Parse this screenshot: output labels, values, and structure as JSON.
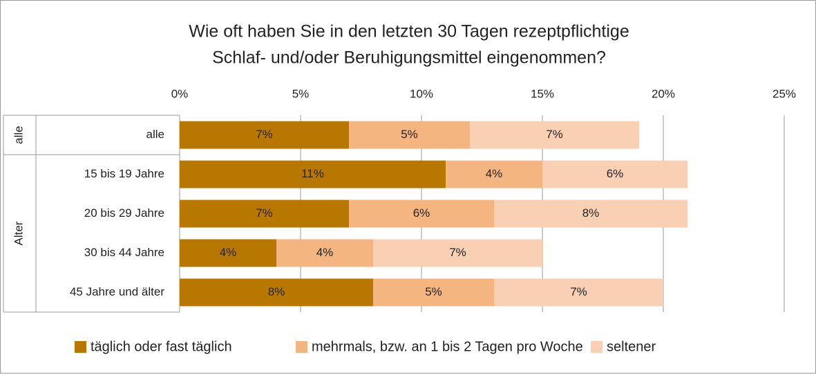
{
  "chart_data": {
    "type": "stacked-barh",
    "title": "Wie oft haben Sie in den letzten 30 Tagen rezeptpflichtige",
    "subtitle": "Schlaf- und/oder Beruhigungsmittel eingenommen?",
    "groups": [
      "alle",
      "Alter"
    ],
    "categories": [
      "alle",
      "15 bis 19 Jahre",
      "20 bis 29 Jahre",
      "30 bis 44 Jahre",
      "45 Jahre und älter"
    ],
    "series": [
      {
        "name": "täglich oder fast täglich",
        "color": "#b87800",
        "values": [
          7,
          11,
          7,
          4,
          8
        ],
        "value_labels": [
          "7%",
          "11%",
          "7%",
          "4%",
          "8%"
        ]
      },
      {
        "name": "mehrmals, bzw. an 1 bis 2 Tagen pro Woche",
        "color": "#f5b580",
        "values": [
          5,
          4,
          6,
          4,
          5
        ],
        "value_labels": [
          "5%",
          "4%",
          "6%",
          "4%",
          "5%"
        ]
      },
      {
        "name": "seltener",
        "color": "#fad0b5",
        "values": [
          7,
          6,
          8,
          7,
          7
        ],
        "value_labels": [
          "7%",
          "6%",
          "8%",
          "7%",
          "7%"
        ]
      }
    ],
    "xlim": [
      0,
      25
    ],
    "xticks": [
      {
        "value": 0,
        "label": "0%"
      },
      {
        "value": 5,
        "label": "5%"
      },
      {
        "value": 10,
        "label": "10%"
      },
      {
        "value": 15,
        "label": "15%"
      },
      {
        "value": 20,
        "label": "20%"
      },
      {
        "value": 25,
        "label": "25%"
      }
    ],
    "grid": true,
    "legend": "bottom"
  }
}
